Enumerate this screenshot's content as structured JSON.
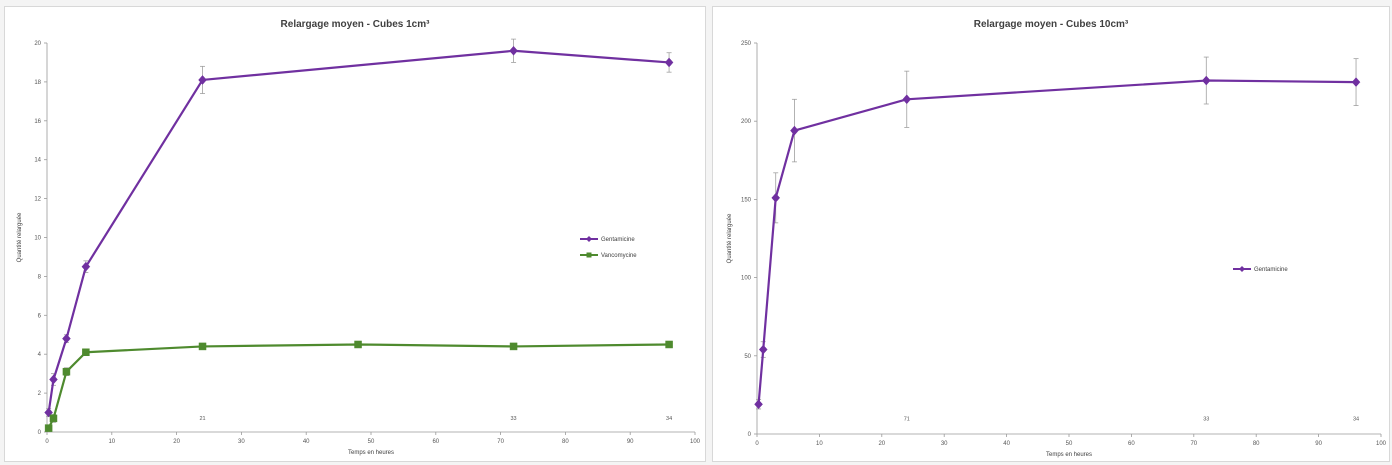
{
  "chart_data": [
    {
      "type": "line",
      "title": "Relargage moyen - Cubes 1cm³",
      "xlabel": "Temps en heures",
      "ylabel": "Quantité relarguée",
      "xlim": [
        0,
        100
      ],
      "ylim": [
        0,
        20
      ],
      "xticks": [
        0,
        10,
        20,
        30,
        40,
        50,
        60,
        70,
        80,
        90,
        100
      ],
      "yticks": [
        0,
        2,
        4,
        6,
        8,
        10,
        12,
        14,
        16,
        18,
        20
      ],
      "grid": false,
      "legend_position": "right",
      "series": [
        {
          "name": "Gentamicine",
          "color": "#7030a0",
          "marker": "diamond",
          "x": [
            0.25,
            1,
            3,
            6,
            24,
            72,
            96
          ],
          "y": [
            1.0,
            2.7,
            4.8,
            8.5,
            18.1,
            19.6,
            19.0
          ],
          "err": [
            0.2,
            0.3,
            0.2,
            0.3,
            0.7,
            0.6,
            0.5
          ]
        },
        {
          "name": "Vancomycine",
          "color": "#4e8a2e",
          "marker": "square",
          "x": [
            0.25,
            1,
            3,
            6,
            24,
            48,
            72,
            96
          ],
          "y": [
            0.2,
            0.7,
            3.1,
            4.1,
            4.4,
            4.5,
            4.4,
            4.5
          ],
          "err": [
            0.1,
            0.2,
            0.2,
            0.1,
            0.1,
            0.1,
            0.1,
            0.1
          ]
        }
      ],
      "annotations": [
        {
          "x": 24,
          "y": 0.4,
          "text": "21"
        },
        {
          "x": 72,
          "y": 0.4,
          "text": "33"
        },
        {
          "x": 96,
          "y": 0.4,
          "text": "34"
        }
      ]
    },
    {
      "type": "line",
      "title": "Relargage moyen - Cubes 10cm³",
      "xlabel": "Temps en heures",
      "ylabel": "Quantité relarguée",
      "xlim": [
        0,
        100
      ],
      "ylim": [
        0,
        250
      ],
      "xticks": [
        0,
        10,
        20,
        30,
        40,
        50,
        60,
        70,
        80,
        90,
        100
      ],
      "yticks": [
        0,
        50,
        100,
        150,
        200,
        250
      ],
      "grid": false,
      "legend_position": "right",
      "series": [
        {
          "name": "Gentamicine",
          "color": "#7030a0",
          "marker": "diamond",
          "x": [
            0.25,
            1,
            3,
            6,
            24,
            72,
            96
          ],
          "y": [
            19,
            54,
            151,
            194,
            214,
            226,
            225
          ],
          "err": [
            3,
            5,
            16,
            20,
            18,
            15,
            15
          ]
        }
      ],
      "annotations": [
        {
          "x": 24,
          "y": 6,
          "text": "71"
        },
        {
          "x": 72,
          "y": 6,
          "text": "33"
        },
        {
          "x": 96,
          "y": 6,
          "text": "34"
        }
      ]
    }
  ]
}
